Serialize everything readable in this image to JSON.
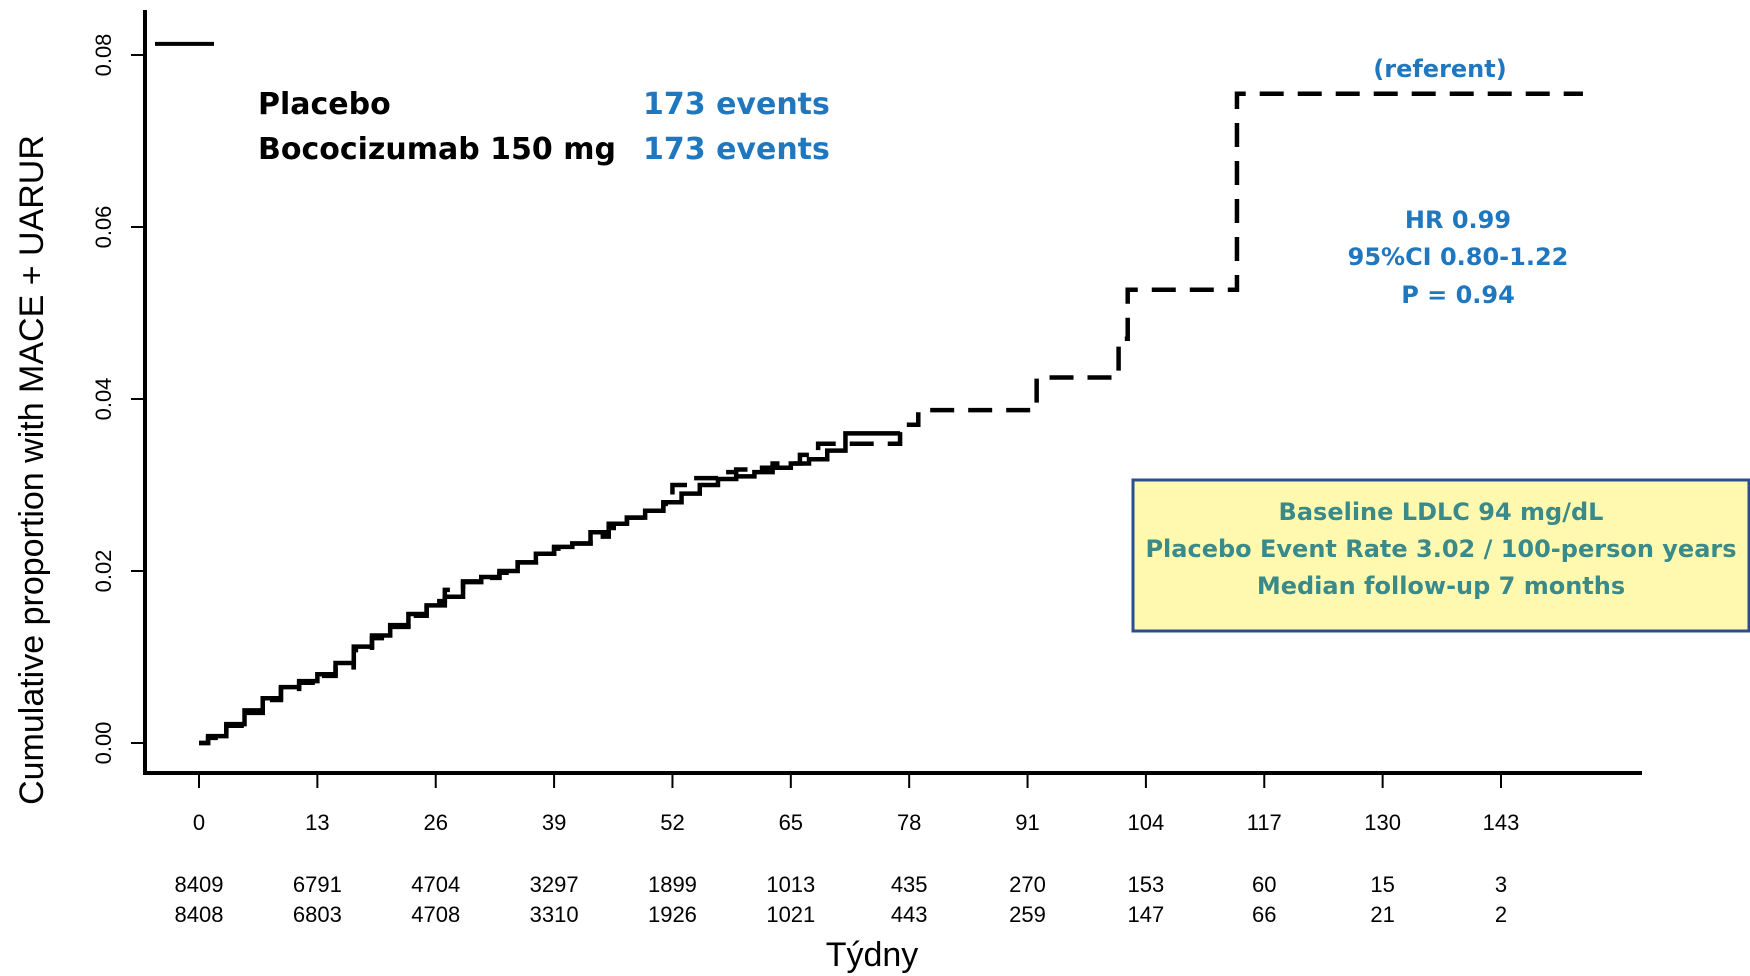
{
  "chart_data": {
    "type": "line",
    "xlabel": "Týdny",
    "ylabel": "Cumulative proportion with MACE + UARUR",
    "xlim": [
      0,
      156
    ],
    "ylim": [
      0,
      0.085
    ],
    "x_ticks": [
      "0",
      "13",
      "26",
      "39",
      "52",
      "65",
      "78",
      "91",
      "104",
      "117",
      "130",
      "143"
    ],
    "y_ticks": [
      "0.00",
      "0.02",
      "0.04",
      "0.06",
      "0.08"
    ],
    "legend": [
      {
        "label": "Placebo",
        "events": "173 events"
      },
      {
        "label": "Bococizumab 150 mg",
        "events": "173 events"
      }
    ],
    "legend_line_y": 0.0813,
    "series": [
      {
        "name": "Placebo",
        "style": "solid",
        "x": [
          0,
          1,
          3,
          5,
          7,
          9,
          11,
          13,
          15,
          17,
          19,
          21,
          23,
          25,
          27,
          29,
          31,
          33,
          35,
          37,
          39,
          41,
          43,
          45,
          47,
          49,
          51,
          53,
          55,
          57,
          59,
          61,
          63,
          65,
          67,
          69,
          71,
          73,
          75,
          77
        ],
        "y": [
          0,
          0.0008,
          0.0022,
          0.0038,
          0.0052,
          0.0065,
          0.0072,
          0.008,
          0.0093,
          0.0112,
          0.0125,
          0.0137,
          0.015,
          0.016,
          0.017,
          0.0187,
          0.0193,
          0.02,
          0.021,
          0.022,
          0.0228,
          0.0232,
          0.0245,
          0.0255,
          0.0262,
          0.027,
          0.028,
          0.029,
          0.03,
          0.0307,
          0.031,
          0.0315,
          0.032,
          0.0325,
          0.033,
          0.034,
          0.036,
          0.036,
          0.036,
          0.036
        ]
      },
      {
        "name": "Bococizumab 150 mg",
        "style": "dashed",
        "x": [
          0,
          1,
          3,
          5,
          7,
          9,
          11,
          13,
          15,
          17,
          19,
          21,
          23,
          25,
          27,
          29,
          31,
          33,
          35,
          37,
          39,
          41,
          43,
          45,
          47,
          49,
          51,
          52,
          54,
          57,
          59,
          61,
          63,
          66,
          68,
          71,
          75,
          77,
          79,
          90,
          92,
          100,
          101,
          102,
          113,
          114,
          152
        ],
        "y": [
          0,
          0.0006,
          0.002,
          0.0035,
          0.005,
          0.0063,
          0.007,
          0.0078,
          0.0088,
          0.0108,
          0.0122,
          0.0135,
          0.0148,
          0.0165,
          0.0178,
          0.0188,
          0.0192,
          0.0198,
          0.021,
          0.022,
          0.0226,
          0.0232,
          0.024,
          0.025,
          0.0262,
          0.027,
          0.0278,
          0.03,
          0.0308,
          0.0315,
          0.0318,
          0.032,
          0.0325,
          0.0335,
          0.0348,
          0.0348,
          0.0348,
          0.037,
          0.0387,
          0.0387,
          0.0425,
          0.0425,
          0.047,
          0.0527,
          0.0527,
          0.0755,
          0.0755
        ]
      }
    ],
    "at_risk": [
      {
        "group": "Placebo",
        "values": [
          "8409",
          "6791",
          "4704",
          "3297",
          "1899",
          "1013",
          "435",
          "270",
          "153",
          "60",
          "15",
          "3"
        ]
      },
      {
        "group": "Bococizumab 150 mg",
        "values": [
          "8408",
          "6803",
          "4708",
          "3310",
          "1926",
          "1021",
          "443",
          "259",
          "147",
          "66",
          "21",
          "2"
        ]
      }
    ],
    "annotations": {
      "referent": "(referent)",
      "hr": "HR 0.99",
      "ci": "95%CI 0.80-1.22",
      "p": "P = 0.94"
    },
    "info_box": {
      "lines": [
        "Baseline LDLC 94 mg/dL",
        "Placebo Event Rate 3.02 / 100-person years",
        "Median follow-up 7 months"
      ],
      "background": "#fff9b0",
      "border": "#2b4f8c",
      "text_color": "#3a8a8a"
    },
    "colors": {
      "line": "#000000",
      "events_text": "#1f77bf",
      "stats_text": "#1f77bf"
    }
  }
}
